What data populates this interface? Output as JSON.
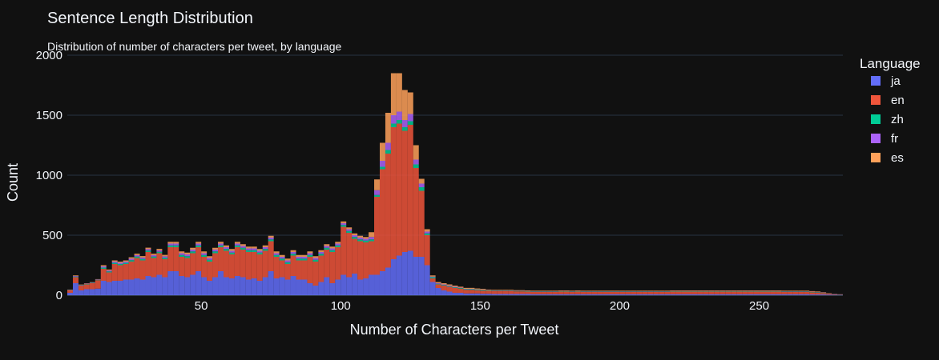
{
  "chart_data": {
    "type": "bar",
    "barmode": "stack",
    "title": "Sentence Length Distribution",
    "subtitle": "Distribution of number of characters per tweet, by language",
    "xlabel": "Number of Characters per Tweet",
    "ylabel": "Count",
    "xlim": [
      2,
      280
    ],
    "ylim": [
      0,
      2000
    ],
    "xticks": [
      50,
      100,
      150,
      200,
      250
    ],
    "yticks": [
      0,
      500,
      1000,
      1500,
      2000
    ],
    "grid": true,
    "legend_title": "Language",
    "legend_position": "right",
    "bin_width": 2,
    "x_start": 2,
    "x": [
      2,
      4,
      6,
      8,
      10,
      12,
      14,
      16,
      18,
      20,
      22,
      24,
      26,
      28,
      30,
      32,
      34,
      36,
      38,
      40,
      42,
      44,
      46,
      48,
      50,
      52,
      54,
      56,
      58,
      60,
      62,
      64,
      66,
      68,
      70,
      72,
      74,
      76,
      78,
      80,
      82,
      84,
      86,
      88,
      90,
      92,
      94,
      96,
      98,
      100,
      102,
      104,
      106,
      108,
      110,
      112,
      114,
      116,
      118,
      120,
      122,
      124,
      126,
      128,
      130,
      132,
      134,
      136,
      138,
      140,
      142,
      144,
      146,
      148,
      150,
      152,
      154,
      156,
      158,
      160,
      162,
      164,
      166,
      168,
      170,
      172,
      174,
      176,
      178,
      180,
      182,
      184,
      186,
      188,
      190,
      192,
      194,
      196,
      198,
      200,
      202,
      204,
      206,
      208,
      210,
      212,
      214,
      216,
      218,
      220,
      222,
      224,
      226,
      228,
      230,
      232,
      234,
      236,
      238,
      240,
      242,
      244,
      246,
      248,
      250,
      252,
      254,
      256,
      258,
      260,
      262,
      264,
      266,
      268,
      270,
      272,
      274,
      276,
      278
    ],
    "series": [
      {
        "name": "ja",
        "color": "#636EFA",
        "values": [
          20,
          100,
          40,
          50,
          50,
          55,
          120,
          110,
          120,
          120,
          130,
          130,
          140,
          130,
          160,
          150,
          170,
          150,
          200,
          200,
          160,
          150,
          170,
          200,
          150,
          120,
          150,
          200,
          150,
          140,
          160,
          150,
          130,
          140,
          120,
          150,
          200,
          140,
          150,
          130,
          160,
          130,
          130,
          100,
          80,
          110,
          150,
          100,
          130,
          170,
          150,
          180,
          130,
          140,
          170,
          170,
          200,
          230,
          300,
          330,
          360,
          370,
          320,
          320,
          250,
          110,
          60,
          40,
          30,
          20,
          20,
          15,
          15,
          15,
          12,
          12,
          10,
          10,
          10,
          10,
          10,
          10,
          10,
          8,
          8,
          8,
          8,
          8,
          8,
          8,
          8,
          8,
          8,
          8,
          8,
          8,
          8,
          8,
          8,
          8,
          8,
          8,
          8,
          8,
          8,
          8,
          8,
          8,
          8,
          8,
          8,
          8,
          8,
          8,
          8,
          8,
          8,
          8,
          8,
          8,
          8,
          8,
          8,
          8,
          8,
          8,
          8,
          8,
          8,
          8,
          8,
          8,
          8,
          6,
          6,
          6,
          5,
          3,
          2
        ]
      },
      {
        "name": "en",
        "color": "#EF553B",
        "values": [
          20,
          50,
          40,
          40,
          50,
          70,
          100,
          80,
          140,
          130,
          130,
          150,
          170,
          160,
          200,
          160,
          180,
          150,
          200,
          200,
          160,
          160,
          180,
          200,
          170,
          160,
          200,
          200,
          220,
          200,
          240,
          230,
          230,
          220,
          220,
          220,
          250,
          180,
          140,
          130,
          170,
          160,
          160,
          220,
          200,
          220,
          230,
          260,
          270,
          400,
          370,
          290,
          320,
          300,
          280,
          650,
          850,
          950,
          1100,
          1100,
          1010,
          1050,
          740,
          550,
          250,
          30,
          30,
          40,
          40,
          40,
          35,
          30,
          30,
          25,
          25,
          25,
          25,
          25,
          25,
          25,
          22,
          22,
          20,
          20,
          20,
          20,
          20,
          20,
          22,
          22,
          20,
          22,
          20,
          20,
          20,
          20,
          20,
          20,
          20,
          20,
          20,
          20,
          20,
          20,
          20,
          20,
          20,
          20,
          22,
          22,
          22,
          22,
          22,
          22,
          22,
          22,
          22,
          22,
          22,
          22,
          22,
          22,
          22,
          22,
          22,
          22,
          22,
          22,
          20,
          20,
          20,
          20,
          20,
          18,
          15,
          12,
          8,
          5,
          3
        ]
      },
      {
        "name": "zh",
        "color": "#00CC96",
        "values": [
          2,
          5,
          3,
          3,
          3,
          3,
          10,
          8,
          10,
          10,
          10,
          12,
          12,
          12,
          12,
          12,
          12,
          12,
          15,
          15,
          15,
          15,
          15,
          15,
          15,
          15,
          15,
          15,
          15,
          15,
          15,
          15,
          15,
          15,
          15,
          15,
          15,
          15,
          15,
          15,
          15,
          15,
          15,
          15,
          15,
          15,
          15,
          15,
          15,
          15,
          15,
          15,
          15,
          15,
          15,
          15,
          20,
          30,
          30,
          30,
          30,
          30,
          30,
          30,
          15,
          10,
          5,
          5,
          5,
          5,
          5,
          5,
          5,
          5,
          5,
          3,
          3,
          3,
          3,
          3,
          3,
          3,
          3,
          3,
          3,
          3,
          3,
          3,
          3,
          3,
          3,
          3,
          3,
          3,
          3,
          3,
          3,
          3,
          3,
          3,
          3,
          3,
          3,
          3,
          3,
          3,
          3,
          3,
          3,
          3,
          3,
          3,
          3,
          3,
          3,
          3,
          3,
          3,
          3,
          3,
          3,
          3,
          3,
          3,
          3,
          3,
          3,
          3,
          3,
          3,
          3,
          3,
          3,
          3,
          3,
          2,
          1,
          1,
          1
        ]
      },
      {
        "name": "fr",
        "color": "#AB63FA",
        "values": [
          2,
          5,
          3,
          3,
          3,
          3,
          10,
          8,
          10,
          10,
          10,
          12,
          12,
          12,
          12,
          12,
          12,
          12,
          15,
          15,
          15,
          15,
          15,
          15,
          15,
          15,
          15,
          15,
          15,
          15,
          15,
          15,
          15,
          15,
          15,
          15,
          15,
          15,
          15,
          15,
          15,
          15,
          15,
          15,
          15,
          15,
          15,
          15,
          15,
          15,
          15,
          15,
          15,
          15,
          20,
          40,
          50,
          60,
          70,
          70,
          60,
          60,
          40,
          30,
          15,
          5,
          5,
          5,
          5,
          5,
          3,
          3,
          3,
          3,
          3,
          2,
          2,
          2,
          2,
          2,
          2,
          2,
          2,
          2,
          2,
          2,
          2,
          2,
          2,
          2,
          2,
          2,
          2,
          2,
          2,
          2,
          2,
          2,
          2,
          2,
          2,
          2,
          2,
          2,
          2,
          2,
          2,
          2,
          2,
          2,
          2,
          2,
          2,
          2,
          2,
          2,
          2,
          2,
          2,
          2,
          2,
          2,
          2,
          2,
          2,
          2,
          2,
          2,
          2,
          2,
          2,
          2,
          2,
          2,
          2,
          2,
          1,
          1,
          1
        ]
      },
      {
        "name": "es",
        "color": "#FFA15A",
        "values": [
          3,
          5,
          3,
          3,
          3,
          3,
          10,
          8,
          10,
          10,
          10,
          12,
          12,
          12,
          12,
          12,
          12,
          12,
          15,
          15,
          15,
          15,
          15,
          15,
          15,
          15,
          15,
          15,
          15,
          15,
          15,
          15,
          15,
          15,
          15,
          15,
          15,
          15,
          15,
          15,
          15,
          15,
          15,
          15,
          15,
          15,
          15,
          15,
          15,
          15,
          15,
          15,
          15,
          15,
          40,
          90,
          150,
          250,
          350,
          320,
          250,
          180,
          120,
          40,
          20,
          10,
          10,
          10,
          10,
          10,
          8,
          8,
          8,
          8,
          8,
          5,
          5,
          5,
          5,
          5,
          5,
          5,
          5,
          5,
          5,
          5,
          5,
          5,
          5,
          5,
          5,
          5,
          5,
          5,
          5,
          5,
          5,
          5,
          5,
          5,
          5,
          5,
          5,
          5,
          5,
          5,
          5,
          5,
          5,
          5,
          5,
          5,
          5,
          5,
          5,
          5,
          5,
          5,
          5,
          5,
          5,
          5,
          5,
          5,
          5,
          5,
          5,
          5,
          5,
          5,
          5,
          5,
          5,
          5,
          5,
          3,
          2,
          1,
          1
        ]
      }
    ]
  }
}
